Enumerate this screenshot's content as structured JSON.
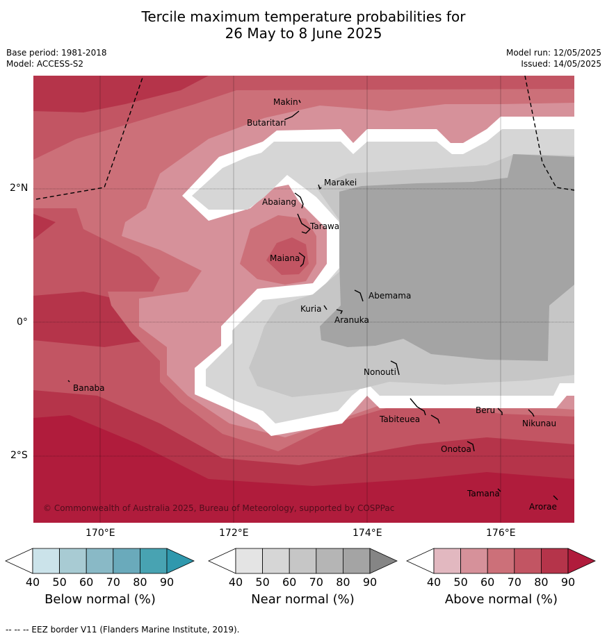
{
  "title_line1": "Tercile maximum temperature probabilities for",
  "title_line2": "26 May to 8 June 2025",
  "base_period": "Base period: 1981-2018",
  "model": "Model: ACCESS-S2",
  "model_run": "Model run: 12/05/2025",
  "issued": "Issued: 14/05/2025",
  "lat_labels": [
    "2°N",
    "0°",
    "2°S"
  ],
  "lon_labels": [
    "170°E",
    "172°E",
    "174°E",
    "176°E"
  ],
  "copyright": "© Commonwealth of Australia 2025, Bureau of Meteorology, supported by COSPPac",
  "places": [
    "Makin",
    "Butaritari",
    "Marakei",
    "Abaiang",
    "Tarawa",
    "Maiana",
    "Abemama",
    "Kuria",
    "Aranuka",
    "Nonouti",
    "Banaba",
    "Beru",
    "Tabiteuea",
    "Nikunau",
    "Onotoa",
    "Tamana",
    "Arorae"
  ],
  "colorbars": [
    {
      "label": "Below normal (%)",
      "ticks": [
        "40",
        "50",
        "60",
        "70",
        "80",
        "90"
      ],
      "colors": [
        "#ffffff",
        "#cbe3ea",
        "#a8cbd3",
        "#89b9c6",
        "#6aaabb",
        "#48a3b2",
        "#2f98ad"
      ]
    },
    {
      "label": "Near normal (%)",
      "ticks": [
        "40",
        "50",
        "60",
        "70",
        "80",
        "90"
      ],
      "colors": [
        "#ffffff",
        "#e4e4e4",
        "#d6d6d6",
        "#c6c6c6",
        "#b5b5b5",
        "#a4a4a4",
        "#858585"
      ]
    },
    {
      "label": "Above normal (%)",
      "ticks": [
        "40",
        "50",
        "60",
        "70",
        "80",
        "90"
      ],
      "colors": [
        "#ffffff",
        "#e2b8c0",
        "#d6919a",
        "#cc7079",
        "#c25563",
        "#b5344a",
        "#b01c3c"
      ]
    }
  ],
  "footer": "--  --  -- EEZ border V11 (Flanders Marine Institute, 2019)."
}
